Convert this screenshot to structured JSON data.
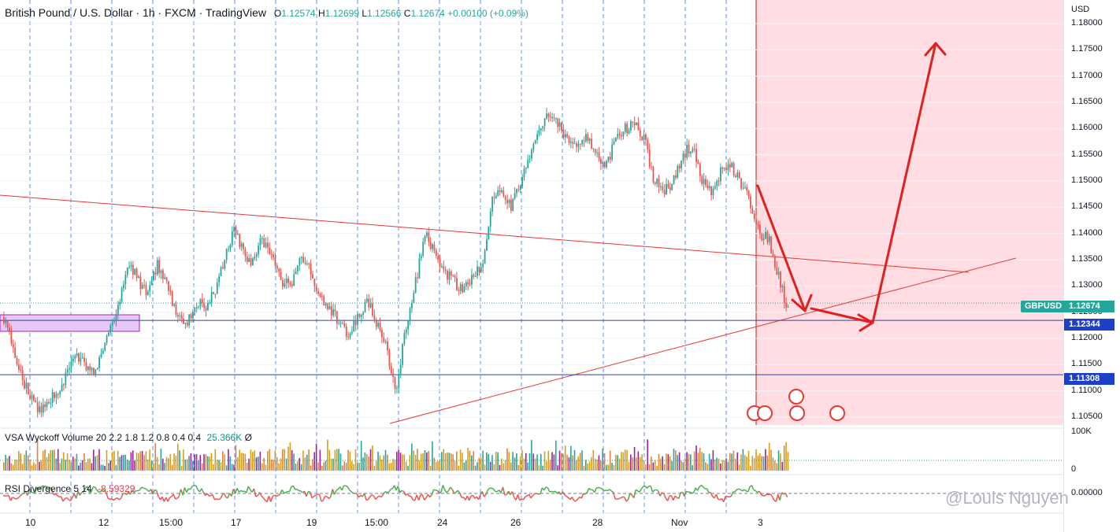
{
  "header": {
    "title": "British Pound / U.S. Dollar · 1h · FXCM · TradingView",
    "open_label": "O",
    "open": "1.12574",
    "high_label": "H",
    "high": "1.12699",
    "low_label": "L",
    "low": "1.12566",
    "close_label": "C",
    "close": "1.12674",
    "change": "+0.00100 (+0.09%)"
  },
  "axis": {
    "currency": "USD",
    "volume_max": "100K",
    "volume_zero": "0",
    "rsi_zero": "0.00000"
  },
  "indicators": {
    "volume_label": "VSA Wyckoff Volume 20 2.2 1.8 1.2 0.8 0.4 0.4",
    "volume_value": "25.366K",
    "volume_extra": "Ø",
    "rsi_label": "RSI Divergence 5 14",
    "rsi_value": "-8.59329"
  },
  "tags": {
    "symbol": "GBPUSD",
    "current_price": "1.12674",
    "level_1": "1.12344",
    "level_2": "1.11308"
  },
  "watermark": "@Louis Nguyen",
  "colors": {
    "up": "#26a69a",
    "down": "#ef5350",
    "projection_zone": "#ffdde2",
    "arrow": "#e02020",
    "level_line": "#2a3fa8",
    "grid_dash": "#2962ff",
    "box_fill": "#e6c8f5"
  },
  "chart_data": {
    "type": "candlestick",
    "symbol": "GBPUSD",
    "timeframe": "1h",
    "y_axis_ticks": [
      "1.18000",
      "1.17500",
      "1.17000",
      "1.16500",
      "1.16000",
      "1.15500",
      "1.15000",
      "1.14500",
      "1.14000",
      "1.13500",
      "1.13000",
      "1.12500",
      "1.12000",
      "1.11500",
      "1.11000",
      "1.10500"
    ],
    "x_axis_ticks": [
      "10",
      "12",
      "15:00",
      "17",
      "19",
      "15:00",
      "24",
      "26",
      "28",
      "Nov",
      "3"
    ],
    "ylim": [
      1.1035,
      1.1845
    ],
    "close_path": [
      1.124,
      1.118,
      1.112,
      1.108,
      1.106,
      1.109,
      1.111,
      1.115,
      1.117,
      1.113,
      1.116,
      1.121,
      1.126,
      1.135,
      1.131,
      1.129,
      1.134,
      1.131,
      1.125,
      1.122,
      1.127,
      1.126,
      1.129,
      1.134,
      1.141,
      1.137,
      1.134,
      1.139,
      1.136,
      1.131,
      1.13,
      1.135,
      1.133,
      1.128,
      1.126,
      1.123,
      1.121,
      1.124,
      1.127,
      1.123,
      1.118,
      1.11,
      1.122,
      1.13,
      1.14,
      1.137,
      1.133,
      1.131,
      1.129,
      1.132,
      1.134,
      1.146,
      1.148,
      1.145,
      1.15,
      1.155,
      1.16,
      1.163,
      1.161,
      1.157,
      1.156,
      1.159,
      1.155,
      1.153,
      1.158,
      1.16,
      1.161,
      1.158,
      1.15,
      1.148,
      1.15,
      1.155,
      1.157,
      1.15,
      1.148,
      1.152,
      1.153,
      1.15,
      1.146,
      1.14,
      1.139,
      1.132,
      1.125
    ],
    "levels": [
      1.12344,
      1.11308
    ],
    "current_price": 1.12674,
    "volume_ylim": [
      0,
      100000
    ],
    "volume_last": 25366,
    "rsi_last": -8.59329
  }
}
